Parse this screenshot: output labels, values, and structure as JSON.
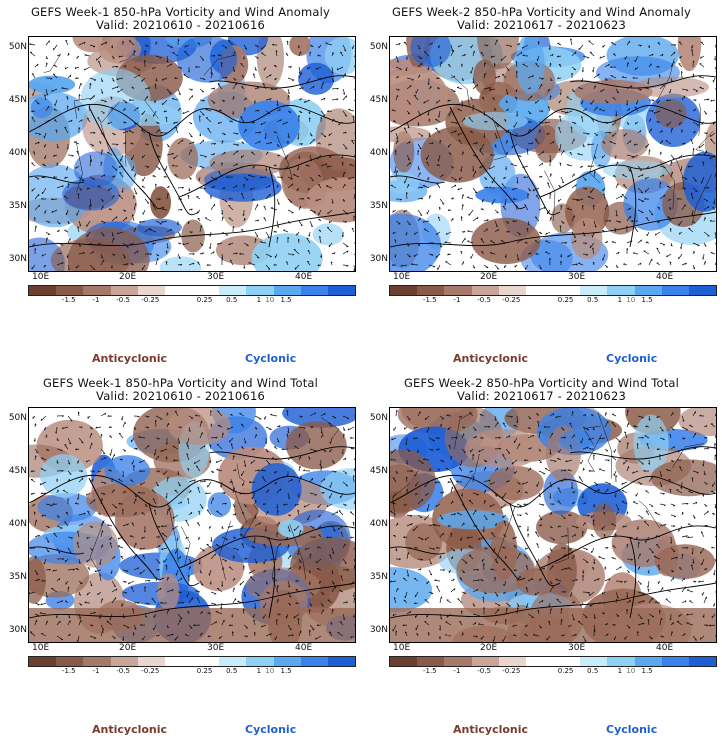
{
  "panels": [
    {
      "title": "GEFS Week-1 850-hPa Vorticity and Wind Anomaly",
      "valid": "Valid: 20210610 - 20210616"
    },
    {
      "title": "GEFS Week-2 850-hPa Vorticity and Wind Anomaly",
      "valid": "Valid: 20210617 - 20210623"
    },
    {
      "title": "GEFS Week-1 850-hPa Vorticity and Wind Total",
      "valid": "Valid: 20210610 - 20210616"
    },
    {
      "title": "GEFS Week-2 850-hPa Vorticity and Wind Total",
      "valid": "Valid: 20210617 - 20210623"
    }
  ],
  "lat_labels": [
    "50N",
    "45N",
    "40N",
    "35N",
    "30N"
  ],
  "lon_labels": [
    "10E",
    "20E",
    "30E",
    "40E"
  ],
  "colorbar": {
    "labels": [
      "-1.5",
      "-1",
      "-0.5",
      "-0.25",
      "0.25",
      "0.5",
      "1",
      "1.5"
    ],
    "scale_note": "10",
    "colors": [
      "#6b4030",
      "#8a5a48",
      "#a7796a",
      "#c9a498",
      "#e9d6cf",
      "#ffffff",
      "#ffffff",
      "#c8ecfa",
      "#8fd0f5",
      "#5aa8ef",
      "#3a82ea",
      "#1e5fd6"
    ]
  },
  "legend": {
    "anticyclonic": "Anticyclonic",
    "cyclonic": "Cyclonic"
  },
  "palette": {
    "brown": "#9a6a58",
    "brown_dark": "#7a4a3a",
    "blue": "#3a82ea",
    "blue_light": "#8fd0f5"
  }
}
